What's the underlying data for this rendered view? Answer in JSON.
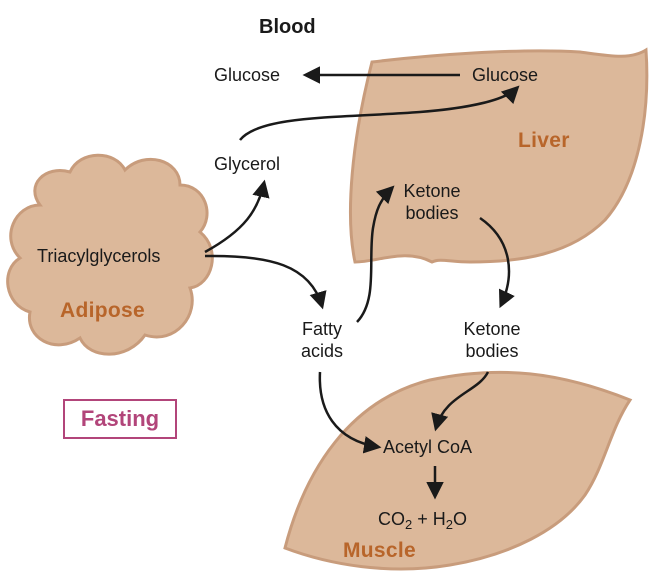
{
  "title": "Blood",
  "organs": {
    "liver": "Liver",
    "adipose": "Adipose",
    "muscle": "Muscle"
  },
  "nodes": {
    "glucose_blood": "Glucose",
    "glucose_liver": "Glucose",
    "glycerol": "Glycerol",
    "triacylglycerols": "Triacylglycerols",
    "fatty_acids_line1": "Fatty",
    "fatty_acids_line2": "acids",
    "ketone_liver_line1": "Ketone",
    "ketone_liver_line2": "bodies",
    "ketone_blood_line1": "Ketone",
    "ketone_blood_line2": "bodies",
    "acetyl_coa": "Acetyl CoA",
    "co2_main": "CO",
    "co2_sub": "2",
    "plus": "+",
    "h2o_h": "H",
    "h2o_sub": "2",
    "h2o_o": "O"
  },
  "state_label": "Fasting",
  "colors": {
    "organ_fill": "#dcb89a",
    "organ_shade": "#c89c7c",
    "organ_text": "#b8652a",
    "state_text": "#b2457a",
    "arrow": "#1a1a1a"
  }
}
